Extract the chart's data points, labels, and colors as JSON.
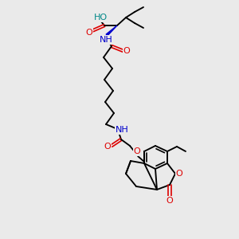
{
  "background_color": "#eaeaea",
  "O_color": "#dd0000",
  "N_color": "#0000cc",
  "C_color": "#000000",
  "HO_color": "#008888",
  "figsize": [
    3.0,
    3.0
  ],
  "dpi": 100,
  "xlim": [
    0,
    300
  ],
  "ylim": [
    0,
    300
  ]
}
